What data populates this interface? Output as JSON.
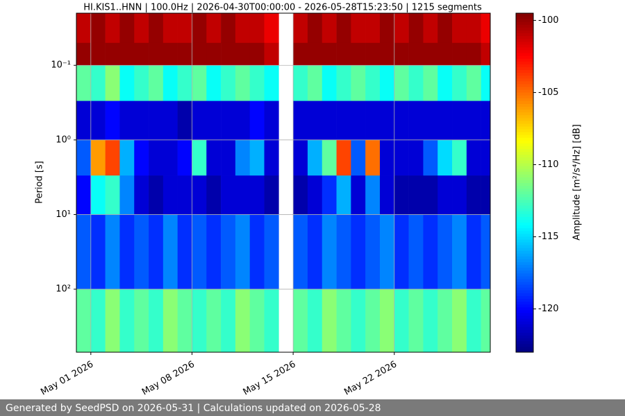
{
  "chart_data": {
    "type": "heatmap",
    "title": "HI.KIS1..HNN | 100.0Hz | 2026-04-30T00:00:00 - 2026-05-28T15:23:50 | 1215 segments",
    "ylabel": "Period [s]",
    "colorbar_label": "Amplitude [m²/s⁴/Hz] [dB]",
    "xlim": [
      "2026-04-30T00:00:00",
      "2026-05-28T15:23:50"
    ],
    "xticks": [
      {
        "value": "2026-05-01",
        "label": "May 01 2026"
      },
      {
        "value": "2026-05-08",
        "label": "May 08 2026"
      },
      {
        "value": "2026-05-15",
        "label": "May 15 2026"
      },
      {
        "value": "2026-05-22",
        "label": "May 22 2026"
      }
    ],
    "ylim": [
      0.02,
      700
    ],
    "log_y": true,
    "yticks": [
      {
        "value": 0.1,
        "label": "10⁻¹"
      },
      {
        "value": 1,
        "label": "10⁰"
      },
      {
        "value": 10,
        "label": "10¹"
      },
      {
        "value": 100,
        "label": "10²"
      }
    ],
    "grid": true,
    "colormap": "jet",
    "clim": [
      -123,
      -99.5
    ],
    "cticks": [
      -100,
      -105,
      -110,
      -115,
      -120
    ],
    "x_edges": [
      "2026-04-30",
      "2026-05-01",
      "2026-05-02",
      "2026-05-03",
      "2026-05-04",
      "2026-05-05",
      "2026-05-06",
      "2026-05-07",
      "2026-05-08",
      "2026-05-09",
      "2026-05-10",
      "2026-05-11",
      "2026-05-12",
      "2026-05-13",
      "2026-05-14",
      "2026-05-15",
      "2026-05-16",
      "2026-05-17",
      "2026-05-18",
      "2026-05-19",
      "2026-05-20",
      "2026-05-21",
      "2026-05-22",
      "2026-05-23",
      "2026-05-24",
      "2026-05-25",
      "2026-05-26",
      "2026-05-27",
      "2026-05-28",
      "2026-05-28T15:23:50"
    ],
    "y_edges": [
      0.02,
      0.05,
      0.1,
      0.3,
      1,
      3,
      10,
      100,
      700
    ],
    "values": [
      [
        -101,
        -100,
        -101,
        -100,
        -101,
        -100,
        -101,
        -101,
        -100,
        -101,
        -100,
        -101,
        -101,
        -102,
        null,
        -101,
        -100,
        -101,
        -100,
        -101,
        -101,
        -100,
        -101,
        -100,
        -101,
        -100,
        -101,
        -101,
        -102
      ],
      [
        -100,
        -100,
        -100,
        -100,
        -100,
        -100,
        -100,
        -100,
        -100,
        -100,
        -100,
        -100,
        -100,
        -101,
        null,
        -100,
        -100,
        -100,
        -100,
        -100,
        -100,
        -100,
        -100,
        -100,
        -100,
        -100,
        -100,
        -100,
        -101
      ],
      [
        -112,
        -113,
        -111,
        -114,
        -113,
        -112,
        -114,
        -113,
        -112,
        -114,
        -113,
        -112,
        -113,
        -114,
        null,
        -113,
        -112,
        -114,
        -113,
        -112,
        -113,
        -114,
        -112,
        -113,
        -112,
        -114,
        -113,
        -112,
        -114
      ],
      [
        -121,
        -121,
        -120,
        -121,
        -121,
        -121,
        -121,
        -122,
        -121,
        -121,
        -121,
        -121,
        -120,
        -121,
        null,
        -121,
        -121,
        -121,
        -121,
        -121,
        -121,
        -121,
        -121,
        -121,
        -121,
        -121,
        -121,
        -121,
        -121
      ],
      [
        -118,
        -106,
        -104,
        -116,
        -120,
        -121,
        -121,
        -120,
        -113,
        -121,
        -121,
        -117,
        -116,
        -121,
        null,
        -121,
        -116,
        -112,
        -104,
        -118,
        -105,
        -121,
        -121,
        -121,
        -118,
        -115,
        -113,
        -121,
        -121
      ],
      [
        -120,
        -114,
        -113,
        -117,
        -121,
        -122,
        -121,
        -121,
        -121,
        -122,
        -121,
        -121,
        -121,
        -122,
        null,
        -122,
        -121,
        -119,
        -116,
        -121,
        -117,
        -121,
        -122,
        -122,
        -122,
        -121,
        -121,
        -122,
        -122
      ],
      [
        -118,
        -119,
        -117,
        -119,
        -118,
        -119,
        -117,
        -119,
        -118,
        -119,
        -118,
        -117,
        -119,
        -118,
        null,
        -118,
        -119,
        -117,
        -118,
        -119,
        -118,
        -117,
        -119,
        -118,
        -119,
        -118,
        -117,
        -119,
        -118
      ],
      [
        -112,
        -113,
        -111,
        -113,
        -112,
        -113,
        -111,
        -112,
        -113,
        -112,
        -113,
        -111,
        -112,
        -113,
        null,
        -112,
        -113,
        -111,
        -112,
        -113,
        -112,
        -111,
        -113,
        -112,
        -113,
        -112,
        -111,
        -113,
        -112
      ]
    ]
  },
  "footer": "Generated by SeedPSD on 2026-05-31 | Calculations updated on 2026-05-28"
}
